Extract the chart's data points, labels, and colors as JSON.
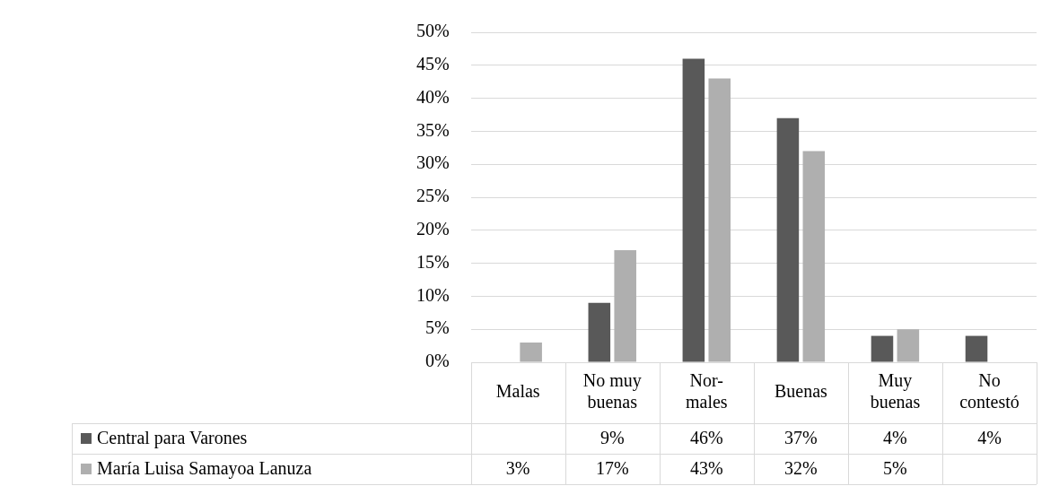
{
  "chart_data": {
    "type": "bar",
    "categories": [
      "Malas",
      "No muy buenas",
      "Nor-males",
      "Buenas",
      "Muy buenas",
      "No contestó"
    ],
    "series": [
      {
        "name": "Central para Varones",
        "color": "#595959",
        "values": [
          null,
          9,
          46,
          37,
          4,
          4
        ],
        "value_labels": [
          null,
          "9%",
          "46%",
          "37%",
          "4%",
          "4%"
        ]
      },
      {
        "name": "María Luisa Samayoa Lanuza",
        "color": "#afafaf",
        "values": [
          3,
          17,
          43,
          32,
          5,
          null
        ],
        "value_labels": [
          "3%",
          "17%",
          "43%",
          "32%",
          "5%",
          null
        ]
      }
    ],
    "ylim": [
      0,
      50
    ],
    "yticks": [
      {
        "value": 0,
        "label": "0%"
      },
      {
        "value": 5,
        "label": "5%"
      },
      {
        "value": 10,
        "label": "10%"
      },
      {
        "value": 15,
        "label": "15%"
      },
      {
        "value": 20,
        "label": "20%"
      },
      {
        "value": 25,
        "label": "25%"
      },
      {
        "value": 30,
        "label": "30%"
      },
      {
        "value": 35,
        "label": "35%"
      },
      {
        "value": 40,
        "label": "40%"
      },
      {
        "value": 45,
        "label": "45%"
      },
      {
        "value": 50,
        "label": "50%"
      }
    ],
    "grid": "y",
    "legend": "bottom"
  }
}
